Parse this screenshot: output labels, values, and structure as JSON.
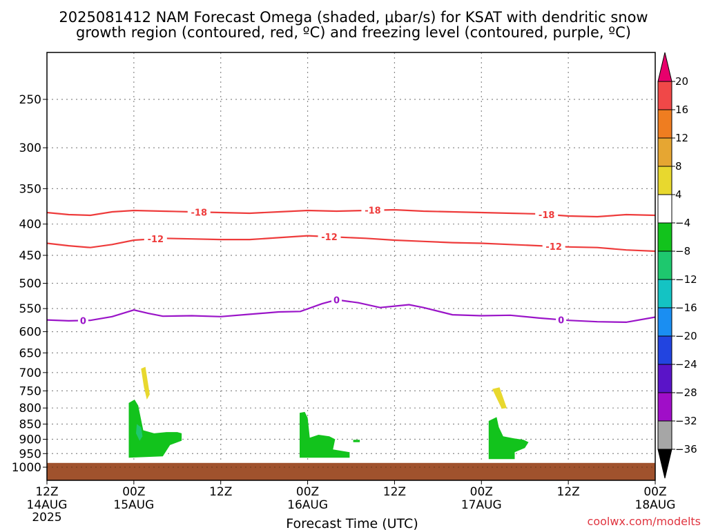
{
  "title_line1": "2025081412 NAM Forecast Omega (shaded, μbar/s) for KSAT with dendritic snow",
  "title_line2": "growth region (contoured, red, ºC) and freezing level (contoured, purple, ºC)",
  "credit": "coolwx.com/modelts",
  "colors": {
    "ground": "#a0522d",
    "temp_contour": "#ee3b3b",
    "freezing_contour": "#9a14c8",
    "grid": "#888888"
  },
  "chart_data": {
    "type": "heatmap",
    "title": "2025081412 NAM Forecast Omega (shaded, μbar/s) for KSAT with dendritic snow growth region (contoured, red, ºC) and freezing level (contoured, purple, ºC)",
    "xlabel": "Forecast Time (UTC)",
    "ylabel": "",
    "x_unit": "hours since 2025-08-14 12Z",
    "xlim": [
      0,
      84
    ],
    "ylim_hpa": [
      1050,
      200
    ],
    "y_scale": "log-pressure",
    "grid": true,
    "x_ticks": [
      {
        "h": 0,
        "l1": "12Z",
        "l2": "14AUG",
        "l3": "2025"
      },
      {
        "h": 12,
        "l1": "00Z",
        "l2": "15AUG",
        "l3": ""
      },
      {
        "h": 24,
        "l1": "12Z",
        "l2": "",
        "l3": ""
      },
      {
        "h": 36,
        "l1": "00Z",
        "l2": "16AUG",
        "l3": ""
      },
      {
        "h": 48,
        "l1": "12Z",
        "l2": "",
        "l3": ""
      },
      {
        "h": 60,
        "l1": "00Z",
        "l2": "17AUG",
        "l3": ""
      },
      {
        "h": 72,
        "l1": "12Z",
        "l2": "",
        "l3": ""
      },
      {
        "h": 84,
        "l1": "00Z",
        "l2": "18AUG",
        "l3": ""
      }
    ],
    "y_ticks": [
      250,
      300,
      350,
      400,
      450,
      500,
      550,
      600,
      650,
      700,
      750,
      800,
      850,
      900,
      950,
      1000
    ],
    "colorbar": {
      "levels": [
        "20",
        "16",
        "12",
        "8",
        "4",
        "−4",
        "−8",
        "−12",
        "−16",
        "−20",
        "−24",
        "−28",
        "−32",
        "−36"
      ],
      "colors": [
        "#e8006c",
        "#f04848",
        "#ef7d20",
        "#e6a632",
        "#e8d82e",
        "#ffffff",
        "#12c31c",
        "#1ec86e",
        "#14c3c3",
        "#1a8ef2",
        "#2244e0",
        "#5a14c8",
        "#a00ec8",
        "#a6a6a6",
        "#000000"
      ]
    },
    "contours": [
      {
        "label": "-18",
        "color": "#ee3b3b",
        "points": [
          [
            0,
            383
          ],
          [
            3,
            386
          ],
          [
            6,
            387
          ],
          [
            9,
            382
          ],
          [
            12,
            380
          ],
          [
            16,
            381
          ],
          [
            20,
            382
          ],
          [
            24,
            383
          ],
          [
            28,
            384
          ],
          [
            32,
            382
          ],
          [
            36,
            380
          ],
          [
            40,
            381
          ],
          [
            44,
            380
          ],
          [
            48,
            379
          ],
          [
            52,
            381
          ],
          [
            56,
            382
          ],
          [
            60,
            383
          ],
          [
            64,
            384
          ],
          [
            68,
            385
          ],
          [
            72,
            388
          ],
          [
            76,
            389
          ],
          [
            80,
            386
          ],
          [
            84,
            387
          ]
        ],
        "label_at": [
          21,
          45,
          69
        ]
      },
      {
        "label": "-12",
        "color": "#ee3b3b",
        "points": [
          [
            0,
            430
          ],
          [
            3,
            434
          ],
          [
            6,
            437
          ],
          [
            9,
            432
          ],
          [
            12,
            425
          ],
          [
            16,
            422
          ],
          [
            20,
            423
          ],
          [
            24,
            424
          ],
          [
            28,
            424
          ],
          [
            32,
            421
          ],
          [
            36,
            418
          ],
          [
            40,
            420
          ],
          [
            44,
            422
          ],
          [
            48,
            425
          ],
          [
            52,
            427
          ],
          [
            56,
            429
          ],
          [
            60,
            430
          ],
          [
            64,
            432
          ],
          [
            68,
            434
          ],
          [
            72,
            436
          ],
          [
            76,
            437
          ],
          [
            80,
            441
          ],
          [
            84,
            443
          ]
        ],
        "label_at": [
          15,
          39,
          70
        ]
      },
      {
        "label": "0",
        "color": "#9a14c8",
        "points": [
          [
            0,
            574
          ],
          [
            3,
            576
          ],
          [
            6,
            575
          ],
          [
            9,
            567
          ],
          [
            12,
            553
          ],
          [
            14,
            560
          ],
          [
            16,
            566
          ],
          [
            20,
            565
          ],
          [
            24,
            567
          ],
          [
            28,
            562
          ],
          [
            32,
            557
          ],
          [
            35,
            556
          ],
          [
            38,
            540
          ],
          [
            40,
            532
          ],
          [
            43,
            538
          ],
          [
            46,
            548
          ],
          [
            48,
            545
          ],
          [
            50,
            542
          ],
          [
            52,
            548
          ],
          [
            56,
            563
          ],
          [
            60,
            565
          ],
          [
            64,
            564
          ],
          [
            68,
            570
          ],
          [
            72,
            575
          ],
          [
            76,
            578
          ],
          [
            80,
            579
          ],
          [
            84,
            568
          ]
        ],
        "label_at": [
          5,
          40,
          71
        ]
      }
    ],
    "shaded_regions": [
      {
        "value": -6,
        "points": [
          [
            11.3,
            785
          ],
          [
            12.1,
            775
          ],
          [
            12.6,
            793
          ],
          [
            13.3,
            870
          ],
          [
            14.8,
            880
          ],
          [
            16.5,
            876
          ],
          [
            18.0,
            876
          ],
          [
            18.6,
            880
          ],
          [
            18.6,
            905
          ],
          [
            17.0,
            920
          ],
          [
            16.0,
            960
          ],
          [
            11.3,
            965
          ]
        ]
      },
      {
        "value": -9,
        "points": [
          [
            12.4,
            850
          ],
          [
            13.0,
            860
          ],
          [
            13.2,
            890
          ],
          [
            12.8,
            905
          ],
          [
            12.3,
            880
          ]
        ]
      },
      {
        "value": 6,
        "points": [
          [
            13.0,
            690
          ],
          [
            13.6,
            685
          ],
          [
            14.2,
            760
          ],
          [
            13.8,
            775
          ],
          [
            13.4,
            740
          ]
        ]
      },
      {
        "value": -6,
        "points": [
          [
            34.9,
            815
          ],
          [
            35.6,
            812
          ],
          [
            36.0,
            830
          ],
          [
            36.3,
            895
          ],
          [
            37.5,
            885
          ],
          [
            39.0,
            890
          ],
          [
            39.8,
            900
          ],
          [
            39.5,
            935
          ],
          [
            41.8,
            945
          ],
          [
            41.8,
            965
          ],
          [
            34.9,
            965
          ]
        ]
      },
      {
        "value": -6,
        "points": [
          [
            42.3,
            902
          ],
          [
            43.2,
            902
          ],
          [
            43.2,
            910
          ],
          [
            42.3,
            910
          ]
        ]
      },
      {
        "value": 6,
        "points": [
          [
            61.5,
            745
          ],
          [
            62.5,
            740
          ],
          [
            63.5,
            800
          ],
          [
            62.8,
            802
          ]
        ]
      },
      {
        "value": -6,
        "points": [
          [
            61.0,
            840
          ],
          [
            62.1,
            828
          ],
          [
            62.4,
            860
          ],
          [
            63.0,
            890
          ],
          [
            64.5,
            897
          ],
          [
            65.8,
            902
          ],
          [
            66.5,
            910
          ],
          [
            66.0,
            930
          ],
          [
            64.6,
            945
          ],
          [
            64.6,
            970
          ],
          [
            61.0,
            970
          ]
        ]
      }
    ],
    "ground_top_hpa": 984
  }
}
